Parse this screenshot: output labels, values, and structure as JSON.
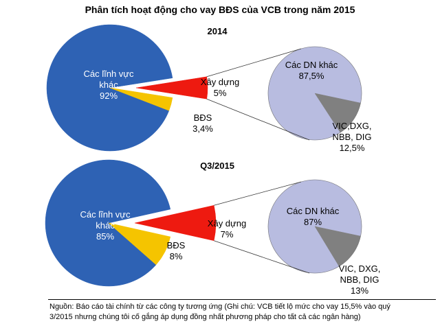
{
  "page": {
    "title": "Phân tích hoạt động cho vay BĐS của VCB trong năm 2015",
    "note_line1": "Nguồn: Báo cáo tài chính từ các công ty tương ứng (Ghi chú: VCB tiết lộ mức cho vay 15,5% vào quý",
    "note_line2": "3/2015 nhưng chúng tôi cố gắng áp dụng đồng nhất phương pháp cho tất cả các ngân hàng)"
  },
  "colors": {
    "blue": "#2e62b4",
    "red": "#ee1a10",
    "yellow": "#f5c400",
    "lavender": "#b8bce0",
    "gray": "#808080"
  },
  "chart_data": [
    {
      "type": "pie",
      "title": "2014",
      "slices": [
        {
          "label": "Các lĩnh vực khác",
          "value": 92,
          "value_label": "92%"
        },
        {
          "label": "Xây dựng",
          "value": 5,
          "value_label": "5%"
        },
        {
          "label": "BĐS",
          "value": 3.4,
          "value_label": "3,4%"
        }
      ],
      "breakdown_of": "Xây dựng",
      "breakdown": [
        {
          "label": "Các DN khác",
          "value": 87.5,
          "value_label": "87,5%"
        },
        {
          "label": "VIC,DXG, NBB, DIG",
          "value": 12.5,
          "value_label": "12,5%"
        }
      ]
    },
    {
      "type": "pie",
      "title": "Q3/2015",
      "slices": [
        {
          "label": "Các lĩnh vực khác",
          "value": 85,
          "value_label": "85%"
        },
        {
          "label": "Xây dựng",
          "value": 7,
          "value_label": "7%"
        },
        {
          "label": "BĐS",
          "value": 8,
          "value_label": "8%"
        }
      ],
      "breakdown_of": "Xây dựng",
      "breakdown": [
        {
          "label": "Các DN khác",
          "value": 87,
          "value_label": "87%"
        },
        {
          "label": "VIC, DXG, NBB, DIG",
          "value": 13,
          "value_label": "13%"
        }
      ]
    }
  ]
}
